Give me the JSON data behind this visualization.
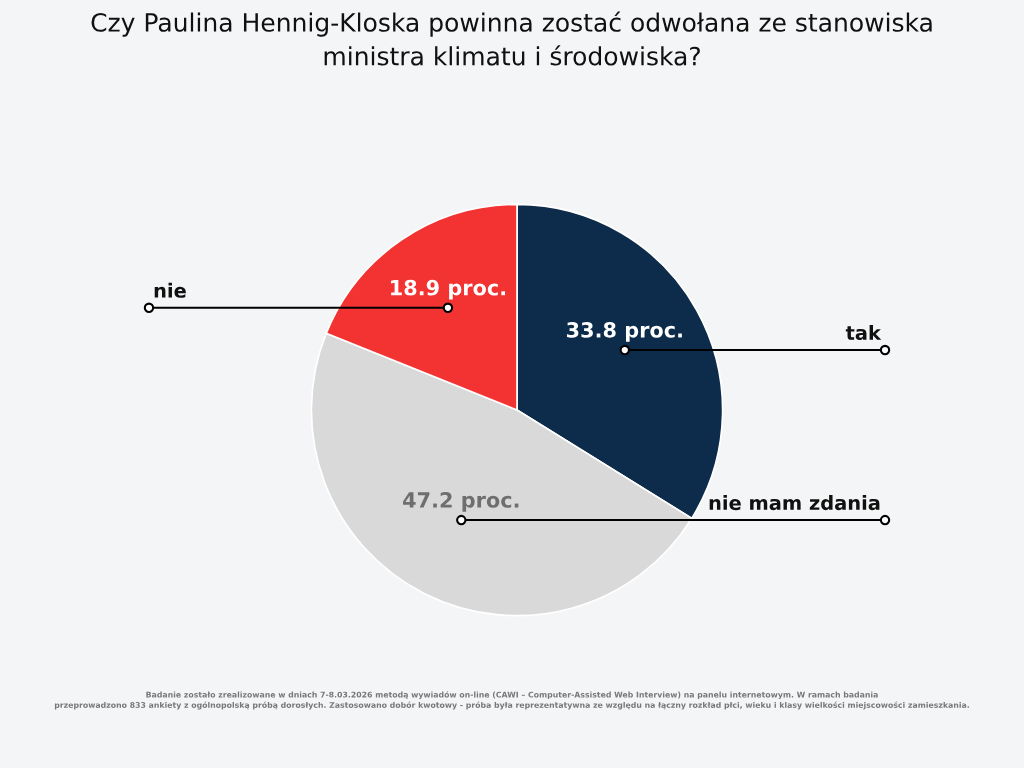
{
  "chart_data": {
    "type": "pie",
    "title": "Czy Paulina Hennig-Kloska powinna zostać odwołana ze stanowiska\nministra klimatu i środowiska?",
    "categories": [
      "tak",
      "nie mam zdania",
      "nie"
    ],
    "values": [
      33.8,
      47.2,
      18.9
    ],
    "colors": [
      "#0d2b4a",
      "#d9d9d9",
      "#f33232"
    ],
    "value_labels": [
      "33.8 proc.",
      "47.2 proc.",
      "18.9 proc."
    ],
    "annotations": [
      "Badanie zostało zrealizowane w dniach 7-8.03.2026 metodą wywiadów on-line (CAWI – Computer-Assisted Web Interview) na panelu internetowym. W ramach badania\nprzeprowadzono 833 ankiety z ogólnopolską próbą dorosłych. Zastosowano dobór kwotowy - próba była reprezentatywna ze względu na łączny rozkład płci, wieku i klasy wielkości miejscowości zamieszkania."
    ]
  }
}
